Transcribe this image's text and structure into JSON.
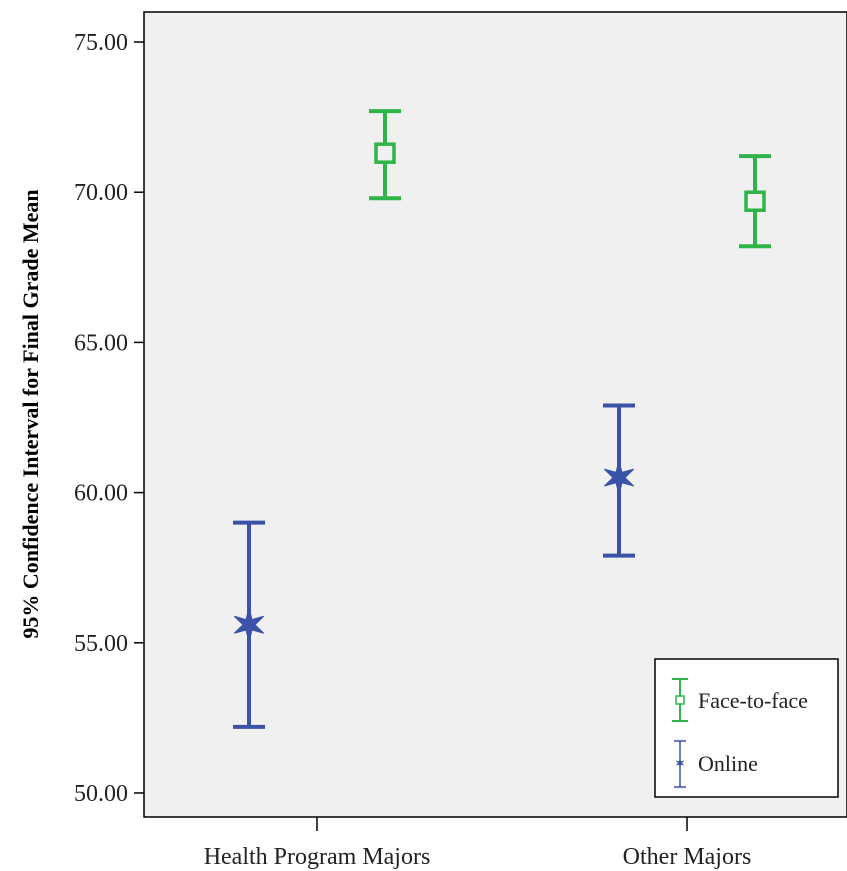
{
  "chart_data": {
    "type": "errorbar",
    "title": "",
    "xlabel": "",
    "ylabel": "95% Confidence Interval for Final Grade Mean",
    "ylim": [
      49.2,
      76.0
    ],
    "yticks": [
      50.0,
      55.0,
      60.0,
      65.0,
      70.0,
      75.0
    ],
    "ytick_labels": [
      "50.00",
      "55.00",
      "60.00",
      "65.00",
      "70.00",
      "75.00"
    ],
    "categories": [
      "Health Program Majors",
      "Other Majors"
    ],
    "series": [
      {
        "name": "Face-to-face",
        "color": "#2fb44a",
        "marker": "square",
        "mean": [
          71.3,
          69.7
        ],
        "lower": [
          69.8,
          68.2
        ],
        "upper": [
          72.7,
          71.2
        ]
      },
      {
        "name": "Online",
        "color": "#3a52a8",
        "marker": "star",
        "mean": [
          55.6,
          60.5
        ],
        "lower": [
          52.2,
          57.9
        ],
        "upper": [
          59.0,
          62.9
        ]
      }
    ],
    "legend_position": "bottom-right",
    "plot_background": "#f0f0f0",
    "grid": false
  }
}
